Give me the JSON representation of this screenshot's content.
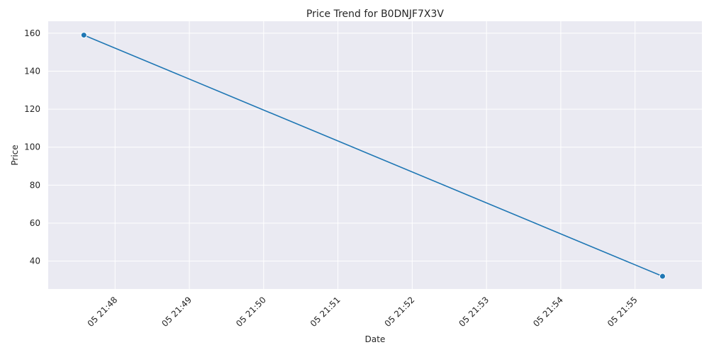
{
  "chart_data": {
    "type": "line",
    "title": "Price Trend for B0DNJF7X3V",
    "xlabel": "Date",
    "ylabel": "Price",
    "x_ticks": [
      "05 21:48",
      "05 21:49",
      "05 21:50",
      "05 21:51",
      "05 21:52",
      "05 21:53",
      "05 21:54",
      "05 21:55"
    ],
    "x_tick_minutes": [
      48,
      49,
      50,
      51,
      52,
      53,
      54,
      55
    ],
    "y_ticks": [
      40,
      60,
      80,
      100,
      120,
      140,
      160
    ],
    "xlim_minutes": [
      47.1,
      55.9
    ],
    "ylim": [
      25.3,
      166.3
    ],
    "grid": true,
    "series": [
      {
        "name": "Price",
        "color": "#1f77b4",
        "points": [
          {
            "x_minutes": 47.58,
            "y": 159
          },
          {
            "x_minutes": 55.37,
            "y": 32
          }
        ]
      }
    ],
    "colors": {
      "background": "#eaeaf2",
      "grid": "#ffffff",
      "line": "#1f77b4"
    }
  }
}
